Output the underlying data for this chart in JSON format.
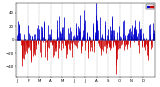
{
  "num_days": 365,
  "ylim": [
    -55,
    55
  ],
  "yticks": [
    -40,
    -20,
    0,
    20,
    40
  ],
  "background_color": "#ffffff",
  "bar_color_pos": "#0000cc",
  "bar_color_neg": "#cc0000",
  "grid_color": "#aaaaaa",
  "tick_fontsize": 2.8,
  "seed": 42,
  "month_positions": [
    0,
    31,
    59,
    90,
    120,
    151,
    181,
    212,
    243,
    273,
    304,
    334
  ],
  "month_labels": [
    "J",
    "F",
    "M",
    "A",
    "M",
    "J",
    "J",
    "A",
    "S",
    "O",
    "N",
    "D"
  ]
}
